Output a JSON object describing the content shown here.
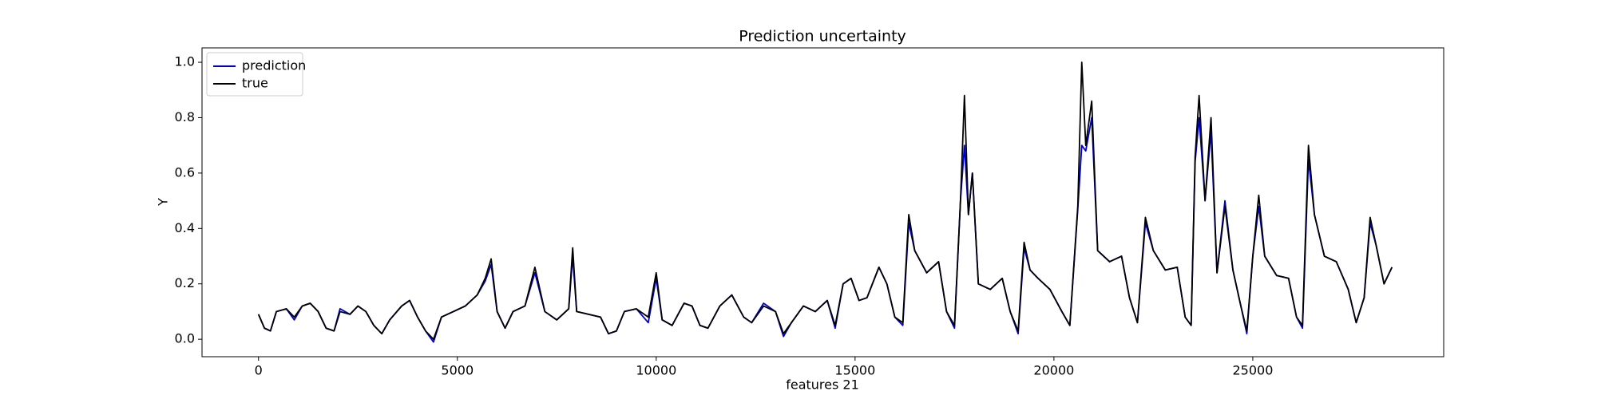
{
  "chart_data": {
    "type": "line",
    "title": "Prediction uncertainty",
    "x_label": "features 21",
    "y_label": "Y",
    "x": [
      0,
      150,
      300,
      450,
      700,
      900,
      1100,
      1300,
      1500,
      1700,
      1900,
      2050,
      2300,
      2500,
      2700,
      2900,
      3100,
      3300,
      3600,
      3800,
      4000,
      4200,
      4400,
      4600,
      4900,
      5200,
      5500,
      5700,
      5850,
      6000,
      6200,
      6400,
      6700,
      6950,
      7200,
      7500,
      7800,
      7900,
      8000,
      8300,
      8600,
      8800,
      9000,
      9200,
      9500,
      9800,
      10000,
      10150,
      10400,
      10700,
      10900,
      11100,
      11300,
      11600,
      11900,
      12200,
      12400,
      12700,
      13000,
      13200,
      13400,
      13700,
      14000,
      14300,
      14500,
      14700,
      14900,
      15100,
      15300,
      15600,
      15800,
      16000,
      16200,
      16350,
      16500,
      16800,
      17100,
      17300,
      17500,
      17650,
      17750,
      17850,
      17950,
      18100,
      18400,
      18700,
      18900,
      19100,
      19250,
      19400,
      19600,
      19900,
      20200,
      20400,
      20600,
      20700,
      20800,
      20950,
      21100,
      21400,
      21700,
      21900,
      22100,
      22300,
      22500,
      22800,
      23100,
      23300,
      23450,
      23550,
      23650,
      23800,
      23950,
      24100,
      24300,
      24500,
      24700,
      24850,
      25000,
      25150,
      25300,
      25600,
      25900,
      26100,
      26250,
      26400,
      26550,
      26800,
      27100,
      27400,
      27600,
      27800,
      27950,
      28100,
      28300,
      28500
    ],
    "series": [
      {
        "name": "prediction",
        "color": "#0000cc",
        "values": [
          0.09,
          0.04,
          0.03,
          0.1,
          0.11,
          0.07,
          0.12,
          0.13,
          0.1,
          0.04,
          0.03,
          0.11,
          0.09,
          0.12,
          0.1,
          0.05,
          0.02,
          0.07,
          0.12,
          0.14,
          0.08,
          0.03,
          -0.01,
          0.08,
          0.1,
          0.12,
          0.16,
          0.21,
          0.27,
          0.1,
          0.04,
          0.1,
          0.12,
          0.24,
          0.1,
          0.07,
          0.11,
          0.3,
          0.1,
          0.09,
          0.08,
          0.02,
          0.03,
          0.1,
          0.11,
          0.06,
          0.22,
          0.07,
          0.05,
          0.13,
          0.12,
          0.05,
          0.04,
          0.12,
          0.16,
          0.08,
          0.06,
          0.13,
          0.1,
          0.01,
          0.06,
          0.12,
          0.1,
          0.14,
          0.04,
          0.2,
          0.22,
          0.14,
          0.15,
          0.26,
          0.2,
          0.08,
          0.05,
          0.42,
          0.32,
          0.24,
          0.28,
          0.1,
          0.04,
          0.5,
          0.7,
          0.45,
          0.6,
          0.2,
          0.18,
          0.22,
          0.1,
          0.02,
          0.33,
          0.25,
          0.22,
          0.18,
          0.1,
          0.05,
          0.47,
          0.7,
          0.68,
          0.8,
          0.32,
          0.28,
          0.3,
          0.15,
          0.06,
          0.42,
          0.32,
          0.25,
          0.26,
          0.08,
          0.05,
          0.64,
          0.8,
          0.5,
          0.75,
          0.24,
          0.5,
          0.25,
          0.12,
          0.02,
          0.3,
          0.48,
          0.3,
          0.23,
          0.22,
          0.08,
          0.04,
          0.65,
          0.45,
          0.3,
          0.28,
          0.18,
          0.06,
          0.15,
          0.42,
          0.34,
          0.2,
          0.26
        ]
      },
      {
        "name": "true",
        "color": "#000000",
        "values": [
          0.09,
          0.04,
          0.03,
          0.1,
          0.11,
          0.08,
          0.12,
          0.13,
          0.1,
          0.04,
          0.03,
          0.1,
          0.09,
          0.12,
          0.1,
          0.05,
          0.02,
          0.07,
          0.12,
          0.14,
          0.08,
          0.03,
          0.0,
          0.08,
          0.1,
          0.12,
          0.16,
          0.22,
          0.29,
          0.1,
          0.04,
          0.1,
          0.12,
          0.26,
          0.1,
          0.07,
          0.11,
          0.33,
          0.1,
          0.09,
          0.08,
          0.02,
          0.03,
          0.1,
          0.11,
          0.08,
          0.24,
          0.07,
          0.05,
          0.13,
          0.12,
          0.05,
          0.04,
          0.12,
          0.16,
          0.08,
          0.06,
          0.12,
          0.1,
          0.02,
          0.06,
          0.12,
          0.1,
          0.14,
          0.05,
          0.2,
          0.22,
          0.14,
          0.15,
          0.26,
          0.2,
          0.08,
          0.06,
          0.45,
          0.32,
          0.24,
          0.28,
          0.1,
          0.05,
          0.5,
          0.88,
          0.45,
          0.6,
          0.2,
          0.18,
          0.22,
          0.1,
          0.03,
          0.35,
          0.25,
          0.22,
          0.18,
          0.1,
          0.05,
          0.48,
          1.0,
          0.7,
          0.86,
          0.32,
          0.28,
          0.3,
          0.15,
          0.06,
          0.44,
          0.32,
          0.25,
          0.26,
          0.08,
          0.05,
          0.66,
          0.88,
          0.5,
          0.8,
          0.24,
          0.48,
          0.25,
          0.12,
          0.03,
          0.3,
          0.52,
          0.3,
          0.23,
          0.22,
          0.08,
          0.05,
          0.7,
          0.45,
          0.3,
          0.28,
          0.18,
          0.06,
          0.15,
          0.44,
          0.34,
          0.2,
          0.26
        ]
      }
    ],
    "xlim": [
      -1420,
      29800
    ],
    "ylim": [
      -0.063,
      1.052
    ],
    "xticks": [
      0,
      5000,
      10000,
      15000,
      20000,
      25000
    ],
    "yticks": [
      {
        "value": 0,
        "label": "0.0"
      },
      {
        "value": 0.2,
        "label": "0.2"
      },
      {
        "value": 0.4,
        "label": "0.4"
      },
      {
        "value": 0.6,
        "label": "0.6"
      },
      {
        "value": 0.8,
        "label": "0.8"
      },
      {
        "value": 1,
        "label": "1.0"
      }
    ],
    "grid": false,
    "legend": "upper left"
  }
}
